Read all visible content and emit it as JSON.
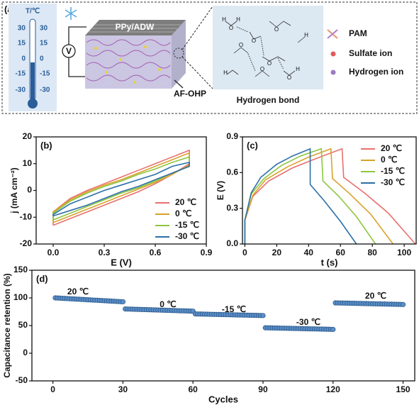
{
  "schematic": {
    "panel_label": "(a)",
    "thermometer": {
      "title": "T/℃",
      "scale": [
        "30",
        "15",
        "0",
        "-15",
        "-30"
      ]
    },
    "voltmeter": "V",
    "electrode": "PPy/ADW",
    "device": "AF-OHP",
    "zoom_title": "Hydrogen bond",
    "molecules": [
      "O",
      "H"
    ],
    "legend": [
      "PAM",
      "Sulfate ion",
      "Hydrogen ion"
    ]
  },
  "chart_data": [
    {
      "type": "line",
      "panel_label": "(b)",
      "xlabel": "E (V)",
      "ylabel": "j (mA cm⁻²)",
      "xlim": [
        -0.1,
        0.9
      ],
      "ylim": [
        -20,
        20
      ],
      "xticks": [
        {
          "value": 0,
          "label": "0.0"
        },
        0.3,
        0.6,
        0.9
      ],
      "yticks": [
        -20,
        -10,
        0,
        10,
        20
      ],
      "legend": "lower right",
      "x": [
        0,
        0.1,
        0.2,
        0.3,
        0.4,
        0.5,
        0.6,
        0.7,
        0.8,
        0.8,
        0.7,
        0.6,
        0.5,
        0.4,
        0.3,
        0.2,
        0.1,
        0,
        0
      ],
      "series": [
        {
          "name": "20 ℃",
          "color": "#e8706f",
          "values": [
            -13,
            -10.5,
            -8,
            -5.5,
            -3,
            -0.5,
            2.5,
            6,
            10,
            15,
            12.5,
            10,
            7.5,
            5,
            2.5,
            0,
            -3,
            -8,
            -13
          ]
        },
        {
          "name": "0 ℃",
          "color": "#d9a22b",
          "values": [
            -12,
            -9.5,
            -7,
            -4.5,
            -2,
            0.5,
            3,
            6,
            9.5,
            14,
            11.5,
            9,
            6.5,
            4,
            2,
            -0.5,
            -3.5,
            -8,
            -12
          ]
        },
        {
          "name": "-15 ℃",
          "color": "#8dc63f",
          "values": [
            -11,
            -8.5,
            -6,
            -3.5,
            -1,
            1,
            3.5,
            6.5,
            9,
            12.5,
            10.5,
            8,
            6,
            3.5,
            1.5,
            -1,
            -4,
            -8.5,
            -11
          ]
        },
        {
          "name": "-30 ℃",
          "color": "#2c6fa6",
          "values": [
            -9.5,
            -7.5,
            -5.5,
            -3,
            -0.5,
            1.5,
            4,
            6.5,
            9,
            10.5,
            9,
            6,
            4,
            2,
            0,
            -2.5,
            -5,
            -9,
            -9.5
          ]
        }
      ]
    },
    {
      "type": "line",
      "panel_label": "(c)",
      "xlabel": "t (s)",
      "ylabel": "E (V)",
      "xlim": [
        -1.5,
        107.5
      ],
      "ylim": [
        0,
        0.9
      ],
      "xticks": [
        0,
        20,
        40,
        60,
        80,
        100
      ],
      "yticks": [
        {
          "value": 0,
          "label": "0.0"
        },
        0.3,
        0.6,
        0.9
      ],
      "legend": "upper right",
      "series": [
        {
          "name": "20 ℃",
          "color": "#e8706f",
          "x": [
            0,
            0,
            5,
            15,
            30,
            45,
            61,
            62,
            75,
            90,
            107
          ],
          "values": [
            0,
            0.2,
            0.4,
            0.53,
            0.64,
            0.72,
            0.8,
            0.56,
            0.43,
            0.26,
            0
          ]
        },
        {
          "name": "0 ℃",
          "color": "#d9a22b",
          "x": [
            0,
            0,
            5,
            13,
            27,
            40,
            54,
            55,
            66,
            79,
            93
          ],
          "values": [
            0,
            0.2,
            0.41,
            0.54,
            0.65,
            0.73,
            0.8,
            0.55,
            0.42,
            0.25,
            0
          ]
        },
        {
          "name": "-15 ℃",
          "color": "#8dc63f",
          "x": [
            0,
            0,
            4,
            12,
            23,
            35,
            48,
            49,
            59,
            70,
            82
          ],
          "values": [
            0,
            0.2,
            0.42,
            0.55,
            0.66,
            0.74,
            0.8,
            0.53,
            0.4,
            0.23,
            0
          ]
        },
        {
          "name": "-30 ℃",
          "color": "#2c6fa6",
          "x": [
            0,
            0,
            4,
            10,
            20,
            30,
            41,
            41,
            50,
            60,
            70
          ],
          "values": [
            0,
            0.2,
            0.43,
            0.56,
            0.67,
            0.74,
            0.8,
            0.5,
            0.36,
            0.19,
            0
          ]
        }
      ]
    },
    {
      "type": "scatter",
      "panel_label": "(d)",
      "xlabel": "Cycles",
      "ylabel": "Capacitance retention (%)",
      "xlim": [
        -9,
        155
      ],
      "ylim": [
        -50,
        150
      ],
      "xticks": [
        0,
        30,
        60,
        90,
        120,
        150
      ],
      "yticks": [
        -50,
        0,
        50,
        100,
        150
      ],
      "color": "#5b8fc9",
      "annotations": [
        "20 ℃",
        "0 ℃",
        "-15 ℃",
        "-30 ℃",
        "20 ℃"
      ],
      "x": [
        1,
        2,
        3,
        4,
        5,
        6,
        7,
        8,
        9,
        10,
        11,
        12,
        13,
        14,
        15,
        16,
        17,
        18,
        19,
        20,
        21,
        22,
        23,
        24,
        25,
        26,
        27,
        28,
        29,
        30,
        31,
        32,
        33,
        34,
        35,
        36,
        37,
        38,
        39,
        40,
        41,
        42,
        43,
        44,
        45,
        46,
        47,
        48,
        49,
        50,
        51,
        52,
        53,
        54,
        55,
        56,
        57,
        58,
        59,
        60,
        61,
        62,
        63,
        64,
        65,
        66,
        67,
        68,
        69,
        70,
        71,
        72,
        73,
        74,
        75,
        76,
        77,
        78,
        79,
        80,
        81,
        82,
        83,
        84,
        85,
        86,
        87,
        88,
        89,
        90,
        91,
        92,
        93,
        94,
        95,
        96,
        97,
        98,
        99,
        100,
        101,
        102,
        103,
        104,
        105,
        106,
        107,
        108,
        109,
        110,
        111,
        112,
        113,
        114,
        115,
        116,
        117,
        118,
        119,
        120,
        121,
        122,
        123,
        124,
        125,
        126,
        127,
        128,
        129,
        130,
        131,
        132,
        133,
        134,
        135,
        136,
        137,
        138,
        139,
        140,
        141,
        142,
        143,
        144,
        145,
        146,
        147,
        148,
        149,
        150
      ],
      "values": [
        100,
        99.8,
        99.5,
        99.3,
        99.0,
        98.8,
        98.6,
        98.3,
        98.1,
        97.8,
        97.6,
        97.3,
        97.1,
        96.9,
        96.6,
        96.4,
        96.1,
        95.9,
        95.7,
        95.4,
        95.2,
        94.9,
        94.7,
        94.4,
        94.2,
        94.0,
        93.7,
        93.5,
        93.2,
        93.0,
        80.0,
        79.9,
        79.7,
        79.6,
        79.4,
        79.3,
        79.2,
        79.0,
        78.9,
        78.8,
        78.6,
        78.5,
        78.3,
        78.2,
        78.1,
        77.9,
        77.8,
        77.7,
        77.5,
        77.4,
        77.2,
        77.1,
        77.0,
        76.8,
        76.7,
        76.6,
        76.4,
        76.3,
        76.1,
        76.0,
        71.0,
        70.9,
        70.8,
        70.7,
        70.6,
        70.5,
        70.4,
        70.3,
        70.2,
        70.1,
        70.0,
        69.9,
        69.8,
        69.7,
        69.6,
        69.5,
        69.4,
        69.3,
        69.2,
        69.1,
        69.0,
        68.9,
        68.8,
        68.7,
        68.6,
        68.5,
        68.4,
        68.3,
        68.2,
        68.0,
        46.0,
        45.9,
        45.8,
        45.7,
        45.6,
        45.5,
        45.4,
        45.3,
        45.2,
        45.1,
        45.0,
        44.9,
        44.8,
        44.7,
        44.6,
        44.5,
        44.4,
        44.3,
        44.2,
        44.1,
        44.0,
        43.9,
        43.8,
        43.7,
        43.6,
        43.5,
        43.4,
        43.3,
        43.2,
        43.0,
        91.0,
        90.9,
        90.8,
        90.7,
        90.6,
        90.5,
        90.4,
        90.3,
        90.2,
        90.1,
        90.0,
        89.9,
        89.8,
        89.7,
        89.6,
        89.5,
        89.4,
        89.3,
        89.2,
        89.1,
        89.0,
        88.9,
        88.8,
        88.7,
        88.6,
        88.5,
        88.4,
        88.3,
        88.2,
        88.0
      ]
    }
  ]
}
